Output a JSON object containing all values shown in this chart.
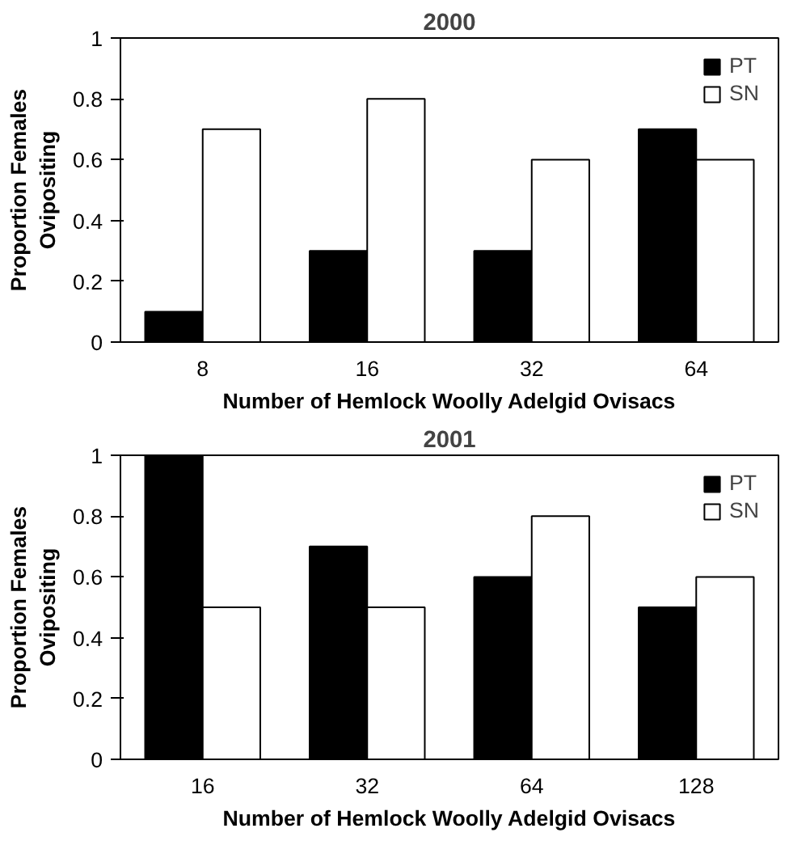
{
  "chart_data": [
    {
      "type": "bar",
      "title": "2000",
      "xlabel": "Number of Hemlock Woolly Adelgid Ovisacs",
      "ylabel": "Proportion Females\nOvipositing",
      "categories": [
        "8",
        "16",
        "32",
        "64"
      ],
      "series": [
        {
          "name": "PT",
          "color": "#000000",
          "values": [
            0.1,
            0.3,
            0.3,
            0.7
          ]
        },
        {
          "name": "SN",
          "color": "#ffffff",
          "values": [
            0.7,
            0.8,
            0.6,
            0.6
          ]
        }
      ],
      "ylim": [
        0,
        1
      ],
      "yticks": [
        0,
        0.2,
        0.4,
        0.6,
        0.8,
        1
      ],
      "legend": "top right",
      "grid": false
    },
    {
      "type": "bar",
      "title": "2001",
      "xlabel": "Number of Hemlock Woolly Adelgid Ovisacs",
      "ylabel": "Proportion Females\nOvipositing",
      "categories": [
        "16",
        "32",
        "64",
        "128"
      ],
      "series": [
        {
          "name": "PT",
          "color": "#000000",
          "values": [
            1,
            0.7,
            0.6,
            0.5
          ]
        },
        {
          "name": "SN",
          "color": "#ffffff",
          "values": [
            0.5,
            0.5,
            0.8,
            0.6
          ]
        }
      ],
      "ylim": [
        0,
        1
      ],
      "yticks": [
        0,
        0.2,
        0.4,
        0.6,
        0.8,
        1
      ],
      "legend": "top right",
      "grid": false
    }
  ]
}
